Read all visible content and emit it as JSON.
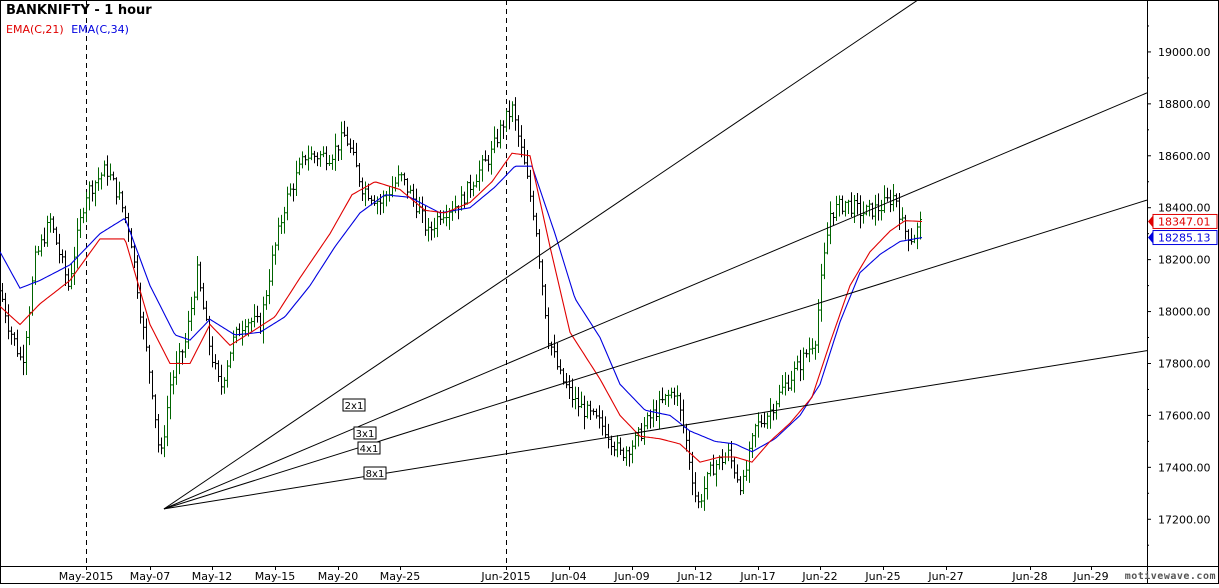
{
  "chart_data": {
    "type": "line",
    "title": "BANKNIFTY - 1 hour",
    "legend": [
      {
        "name": "EMA(C,21)",
        "color": "#e00000"
      },
      {
        "name": "EMA(C,34)",
        "color": "#0000e0"
      }
    ],
    "legend_position": "top-left",
    "grid": false,
    "ylim": [
      17020,
      19200
    ],
    "y_ticks": [
      "19000.00",
      "18800.00",
      "18600.00",
      "18400.00",
      "18200.00",
      "18000.00",
      "17800.00",
      "17600.00",
      "17400.00",
      "17200.00"
    ],
    "x_tick_labels": [
      "May-2015",
      "May-07",
      "May-12",
      "May-15",
      "May-20",
      "May-25",
      "Jun-2015",
      "Jun-04",
      "Jun-09",
      "Jun-12",
      "Jun-17",
      "Jun-22",
      "Jun-25",
      "Jun-27",
      "Jun-28",
      "Jun-29"
    ],
    "month_separators": [
      "May-2015",
      "Jun-2015"
    ],
    "price_labels": [
      {
        "text": "18347.01",
        "value": 18347.01,
        "color": "#e00000"
      },
      {
        "text": "18285.13",
        "value": 18285.13,
        "color": "#0000e0"
      }
    ],
    "gann_fan": {
      "origin": {
        "bar": 164,
        "value": 17240
      },
      "lines": [
        {
          "label": "2x1",
          "slope_per_bar": 2.6
        },
        {
          "label": "3x1",
          "slope_per_bar": 1.63
        },
        {
          "label": "4x1",
          "slope_per_bar": 1.21
        },
        {
          "label": "8x1",
          "slope_per_bar": 0.62
        }
      ]
    },
    "price_anchors": [
      [
        0,
        18080
      ],
      [
        8,
        17950
      ],
      [
        22,
        17800
      ],
      [
        35,
        18200
      ],
      [
        50,
        18350
      ],
      [
        68,
        18100
      ],
      [
        85,
        18450
      ],
      [
        95,
        18500
      ],
      [
        106,
        18550
      ],
      [
        118,
        18450
      ],
      [
        130,
        18300
      ],
      [
        142,
        17950
      ],
      [
        152,
        17700
      ],
      [
        160,
        17420
      ],
      [
        170,
        17720
      ],
      [
        185,
        17880
      ],
      [
        197,
        18150
      ],
      [
        210,
        17850
      ],
      [
        220,
        17700
      ],
      [
        232,
        17880
      ],
      [
        245,
        17970
      ],
      [
        260,
        17950
      ],
      [
        272,
        18200
      ],
      [
        285,
        18420
      ],
      [
        305,
        18600
      ],
      [
        330,
        18600
      ],
      [
        345,
        18680
      ],
      [
        362,
        18480
      ],
      [
        380,
        18420
      ],
      [
        400,
        18520
      ],
      [
        418,
        18400
      ],
      [
        428,
        18300
      ],
      [
        440,
        18380
      ],
      [
        460,
        18420
      ],
      [
        475,
        18520
      ],
      [
        490,
        18600
      ],
      [
        502,
        18720
      ],
      [
        512,
        18780
      ],
      [
        522,
        18600
      ],
      [
        535,
        18350
      ],
      [
        548,
        17900
      ],
      [
        560,
        17750
      ],
      [
        575,
        17650
      ],
      [
        590,
        17600
      ],
      [
        605,
        17550
      ],
      [
        620,
        17450
      ],
      [
        635,
        17500
      ],
      [
        648,
        17580
      ],
      [
        662,
        17650
      ],
      [
        675,
        17700
      ],
      [
        686,
        17500
      ],
      [
        697,
        17250
      ],
      [
        712,
        17400
      ],
      [
        728,
        17450
      ],
      [
        742,
        17320
      ],
      [
        755,
        17550
      ],
      [
        770,
        17620
      ],
      [
        782,
        17700
      ],
      [
        800,
        17800
      ],
      [
        815,
        17900
      ],
      [
        822,
        18150
      ],
      [
        830,
        18380
      ],
      [
        845,
        18420
      ],
      [
        862,
        18380
      ],
      [
        880,
        18400
      ],
      [
        895,
        18450
      ],
      [
        903,
        18320
      ],
      [
        912,
        18280
      ],
      [
        922,
        18350
      ]
    ],
    "ema21_anchors": [
      [
        0,
        18020
      ],
      [
        20,
        17950
      ],
      [
        40,
        18030
      ],
      [
        70,
        18120
      ],
      [
        100,
        18280
      ],
      [
        125,
        18280
      ],
      [
        150,
        17950
      ],
      [
        170,
        17800
      ],
      [
        190,
        17800
      ],
      [
        210,
        17950
      ],
      [
        230,
        17870
      ],
      [
        255,
        17930
      ],
      [
        275,
        17980
      ],
      [
        300,
        18130
      ],
      [
        330,
        18300
      ],
      [
        352,
        18450
      ],
      [
        375,
        18500
      ],
      [
        400,
        18470
      ],
      [
        425,
        18390
      ],
      [
        445,
        18380
      ],
      [
        470,
        18420
      ],
      [
        492,
        18500
      ],
      [
        512,
        18610
      ],
      [
        530,
        18600
      ],
      [
        550,
        18250
      ],
      [
        570,
        17920
      ],
      [
        600,
        17740
      ],
      [
        620,
        17600
      ],
      [
        640,
        17520
      ],
      [
        660,
        17510
      ],
      [
        680,
        17490
      ],
      [
        700,
        17420
      ],
      [
        720,
        17440
      ],
      [
        735,
        17440
      ],
      [
        752,
        17420
      ],
      [
        770,
        17500
      ],
      [
        790,
        17570
      ],
      [
        812,
        17670
      ],
      [
        830,
        17880
      ],
      [
        850,
        18100
      ],
      [
        870,
        18230
      ],
      [
        890,
        18310
      ],
      [
        905,
        18350
      ],
      [
        922,
        18347
      ]
    ],
    "ema34_anchors": [
      [
        0,
        18230
      ],
      [
        20,
        18090
      ],
      [
        40,
        18120
      ],
      [
        70,
        18180
      ],
      [
        100,
        18300
      ],
      [
        125,
        18360
      ],
      [
        150,
        18100
      ],
      [
        175,
        17910
      ],
      [
        190,
        17890
      ],
      [
        210,
        17970
      ],
      [
        235,
        17910
      ],
      [
        260,
        17920
      ],
      [
        285,
        17980
      ],
      [
        310,
        18100
      ],
      [
        335,
        18250
      ],
      [
        360,
        18380
      ],
      [
        385,
        18450
      ],
      [
        410,
        18440
      ],
      [
        440,
        18380
      ],
      [
        470,
        18400
      ],
      [
        495,
        18480
      ],
      [
        515,
        18560
      ],
      [
        532,
        18560
      ],
      [
        555,
        18300
      ],
      [
        575,
        18050
      ],
      [
        600,
        17900
      ],
      [
        620,
        17720
      ],
      [
        645,
        17620
      ],
      [
        670,
        17600
      ],
      [
        690,
        17540
      ],
      [
        715,
        17500
      ],
      [
        735,
        17490
      ],
      [
        752,
        17460
      ],
      [
        775,
        17510
      ],
      [
        800,
        17600
      ],
      [
        820,
        17720
      ],
      [
        840,
        17960
      ],
      [
        860,
        18150
      ],
      [
        880,
        18220
      ],
      [
        900,
        18270
      ],
      [
        922,
        18285
      ]
    ]
  }
}
